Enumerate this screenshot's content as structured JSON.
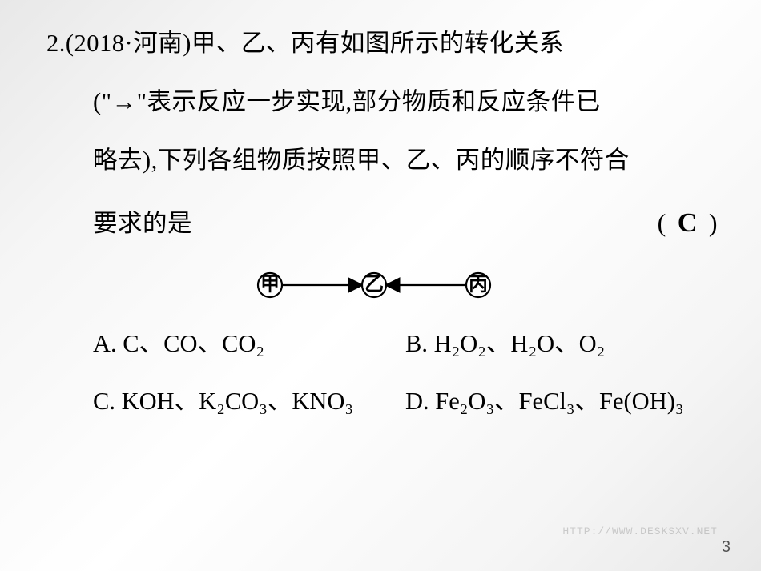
{
  "question": {
    "number": "2.",
    "source": "(2018·河南)",
    "stem_line1": "甲、乙、丙有如图所示的转化关系",
    "stem_line2": "(\"→\"表示反应一步实现,部分物质和反应条件已",
    "stem_line3": "略去),下列各组物质按照甲、乙、丙的顺序不符合",
    "stem_line4": "要求的是",
    "answer": "C"
  },
  "diagram": {
    "nodes": [
      "甲",
      "乙",
      "丙"
    ],
    "edges": [
      {
        "from": 0,
        "to": 1
      },
      {
        "from": 2,
        "to": 1
      }
    ],
    "node_radius": 15,
    "node_spacing": 130,
    "font_size": 24,
    "stroke": "#000000",
    "stroke_width": 2.2,
    "arrow_size": 9
  },
  "options": [
    {
      "label": "A.",
      "formulas": [
        "C",
        "CO",
        "CO₂"
      ]
    },
    {
      "label": "B.",
      "formulas": [
        "H₂O₂",
        "H₂O",
        "O₂"
      ]
    },
    {
      "label": "C.",
      "formulas": [
        "KOH",
        "K₂CO₃",
        "KNO₃"
      ]
    },
    {
      "label": "D.",
      "formulas": [
        "Fe₂O₃",
        "FeCl₃",
        "Fe(OH)₃"
      ]
    }
  ],
  "page_number": "3",
  "watermark": "HTTP://WWW.DESKSXV.NET",
  "style": {
    "text_color": "#000000",
    "body_fontsize": 30.5,
    "line_height": 2.4,
    "answer_fontsize": 34,
    "separator": "、"
  }
}
